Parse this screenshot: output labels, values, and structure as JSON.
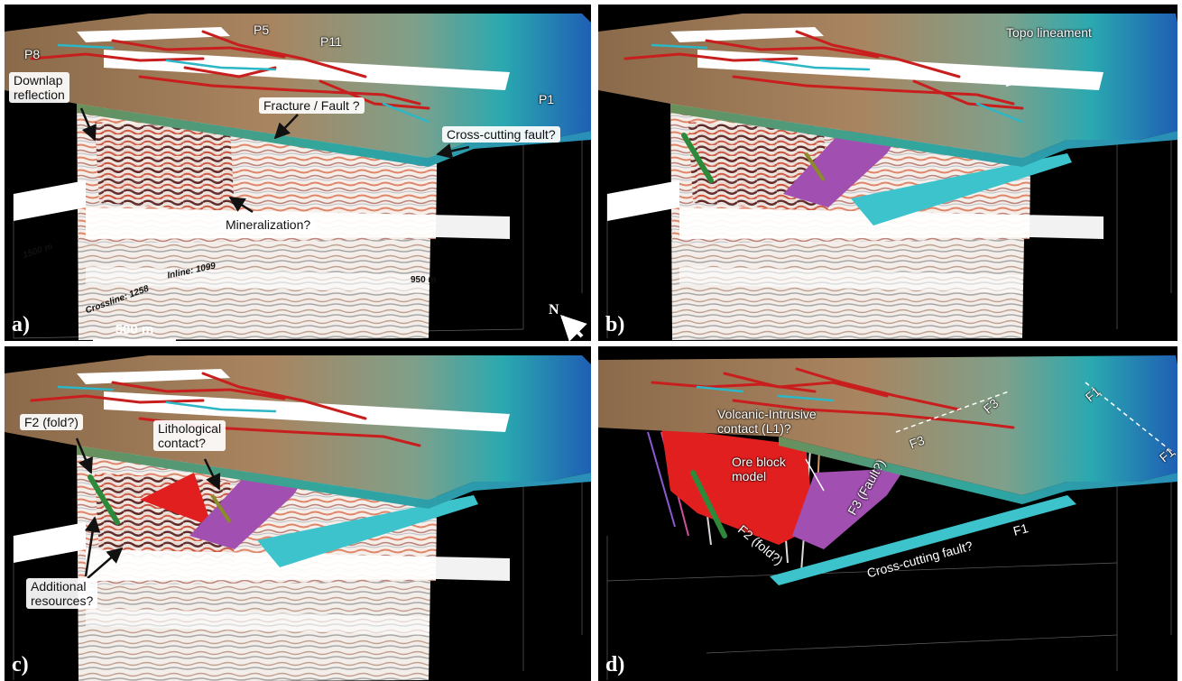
{
  "panels": {
    "a": {
      "label": "a)",
      "annotations": {
        "p8": "P8",
        "p5": "P5",
        "p11": "P11",
        "p1": "P1",
        "downlap": "Downlap\nreflection",
        "fracture": "Fracture / Fault ?",
        "crosscut": "Cross-cutting fault?",
        "mineral": "Mineralization?",
        "depth1500": "1500 m",
        "crossline": "Crossline: 1258",
        "inline": "Inline: 1099",
        "depth950": "950 m"
      },
      "scale_bar": "500 m",
      "north": "N"
    },
    "b": {
      "label": "b)",
      "annotations": {
        "topo": "Topo lineament"
      }
    },
    "c": {
      "label": "c)",
      "annotations": {
        "f2": "F2 (fold?)",
        "litho": "Lithological\ncontact?",
        "additional": "Additional\nresources?"
      }
    },
    "d": {
      "label": "d)",
      "annotations": {
        "volcanic": "Volcanic-Intrusive\ncontact (L1)?",
        "ore": "Ore block\nmodel",
        "f3fault": "F3 (Fault?)",
        "f2fold": "F2 (fold?)",
        "crosscut": "Cross-cutting fault?",
        "f1a": "F1",
        "f1b": "F1",
        "f3a": "F3",
        "f3b": "F3",
        "f1c": "F1"
      }
    }
  },
  "colors": {
    "topo_brown": "#a27a55",
    "topo_teal": "#2aa9b0",
    "topo_blue": "#1f5fb4",
    "fault_purple": "#a14fb0",
    "fault_cyan": "#3cc3cc",
    "ore_red": "#e21f1f",
    "fold_green": "#2c8a3a",
    "lineament_red": "#c81e1e",
    "lineament_cyan": "#2bb7c6"
  }
}
